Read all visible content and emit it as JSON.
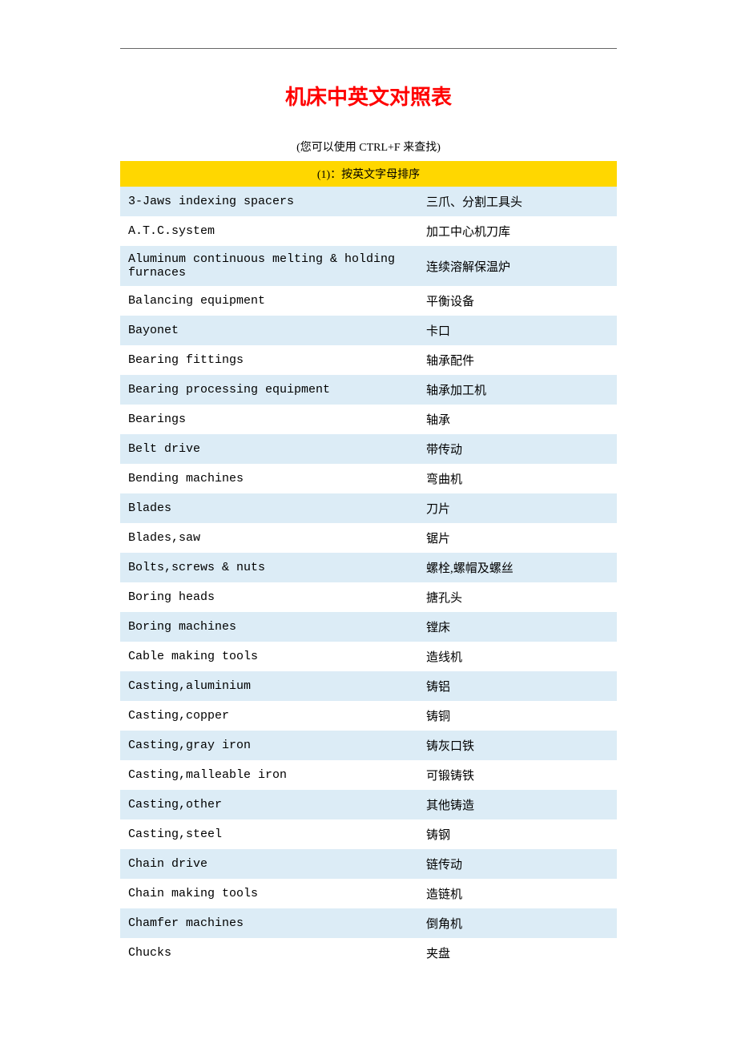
{
  "title": "机床中英文对照表",
  "subtitle": "(您可以使用 CTRL+F 来查找)",
  "table": {
    "header_label": "(1)：按英文字母排序",
    "header_bg_color": "#ffd700",
    "row_odd_bg_color": "#dcecf6",
    "row_even_bg_color": "#ffffff",
    "title_color": "#ff0000",
    "rows": [
      {
        "en": "3-Jaws indexing spacers",
        "cn": "三爪、分割工具头"
      },
      {
        "en": "A.T.C.system",
        "cn": "加工中心机刀库"
      },
      {
        "en": "Aluminum continuous melting & holding furnaces",
        "cn": "连续溶解保温炉"
      },
      {
        "en": "Balancing equipment",
        "cn": "平衡设备"
      },
      {
        "en": "Bayonet",
        "cn": "卡口"
      },
      {
        "en": "Bearing fittings",
        "cn": "轴承配件"
      },
      {
        "en": "Bearing processing equipment",
        "cn": "轴承加工机"
      },
      {
        "en": "Bearings",
        "cn": "轴承"
      },
      {
        "en": "Belt drive",
        "cn": "带传动"
      },
      {
        "en": "Bending machines",
        "cn": "弯曲机"
      },
      {
        "en": "Blades",
        "cn": "刀片"
      },
      {
        "en": "Blades,saw",
        "cn": "锯片"
      },
      {
        "en": "Bolts,screws & nuts",
        "cn": "螺栓,螺帽及螺丝"
      },
      {
        "en": "Boring heads",
        "cn": "搪孔头"
      },
      {
        "en": "Boring machines",
        "cn": "镗床"
      },
      {
        "en": "Cable making tools",
        "cn": "造线机"
      },
      {
        "en": "Casting,aluminium",
        "cn": "铸铝"
      },
      {
        "en": "Casting,copper",
        "cn": "铸铜"
      },
      {
        "en": "Casting,gray iron",
        "cn": "铸灰口铁"
      },
      {
        "en": "Casting,malleable iron",
        "cn": "可锻铸铁"
      },
      {
        "en": "Casting,other",
        "cn": "其他铸造"
      },
      {
        "en": "Casting,steel",
        "cn": "铸钢"
      },
      {
        "en": "Chain drive",
        "cn": "链传动"
      },
      {
        "en": "Chain making tools",
        "cn": "造链机"
      },
      {
        "en": "Chamfer machines",
        "cn": "倒角机"
      },
      {
        "en": "Chucks",
        "cn": "夹盘"
      }
    ]
  }
}
